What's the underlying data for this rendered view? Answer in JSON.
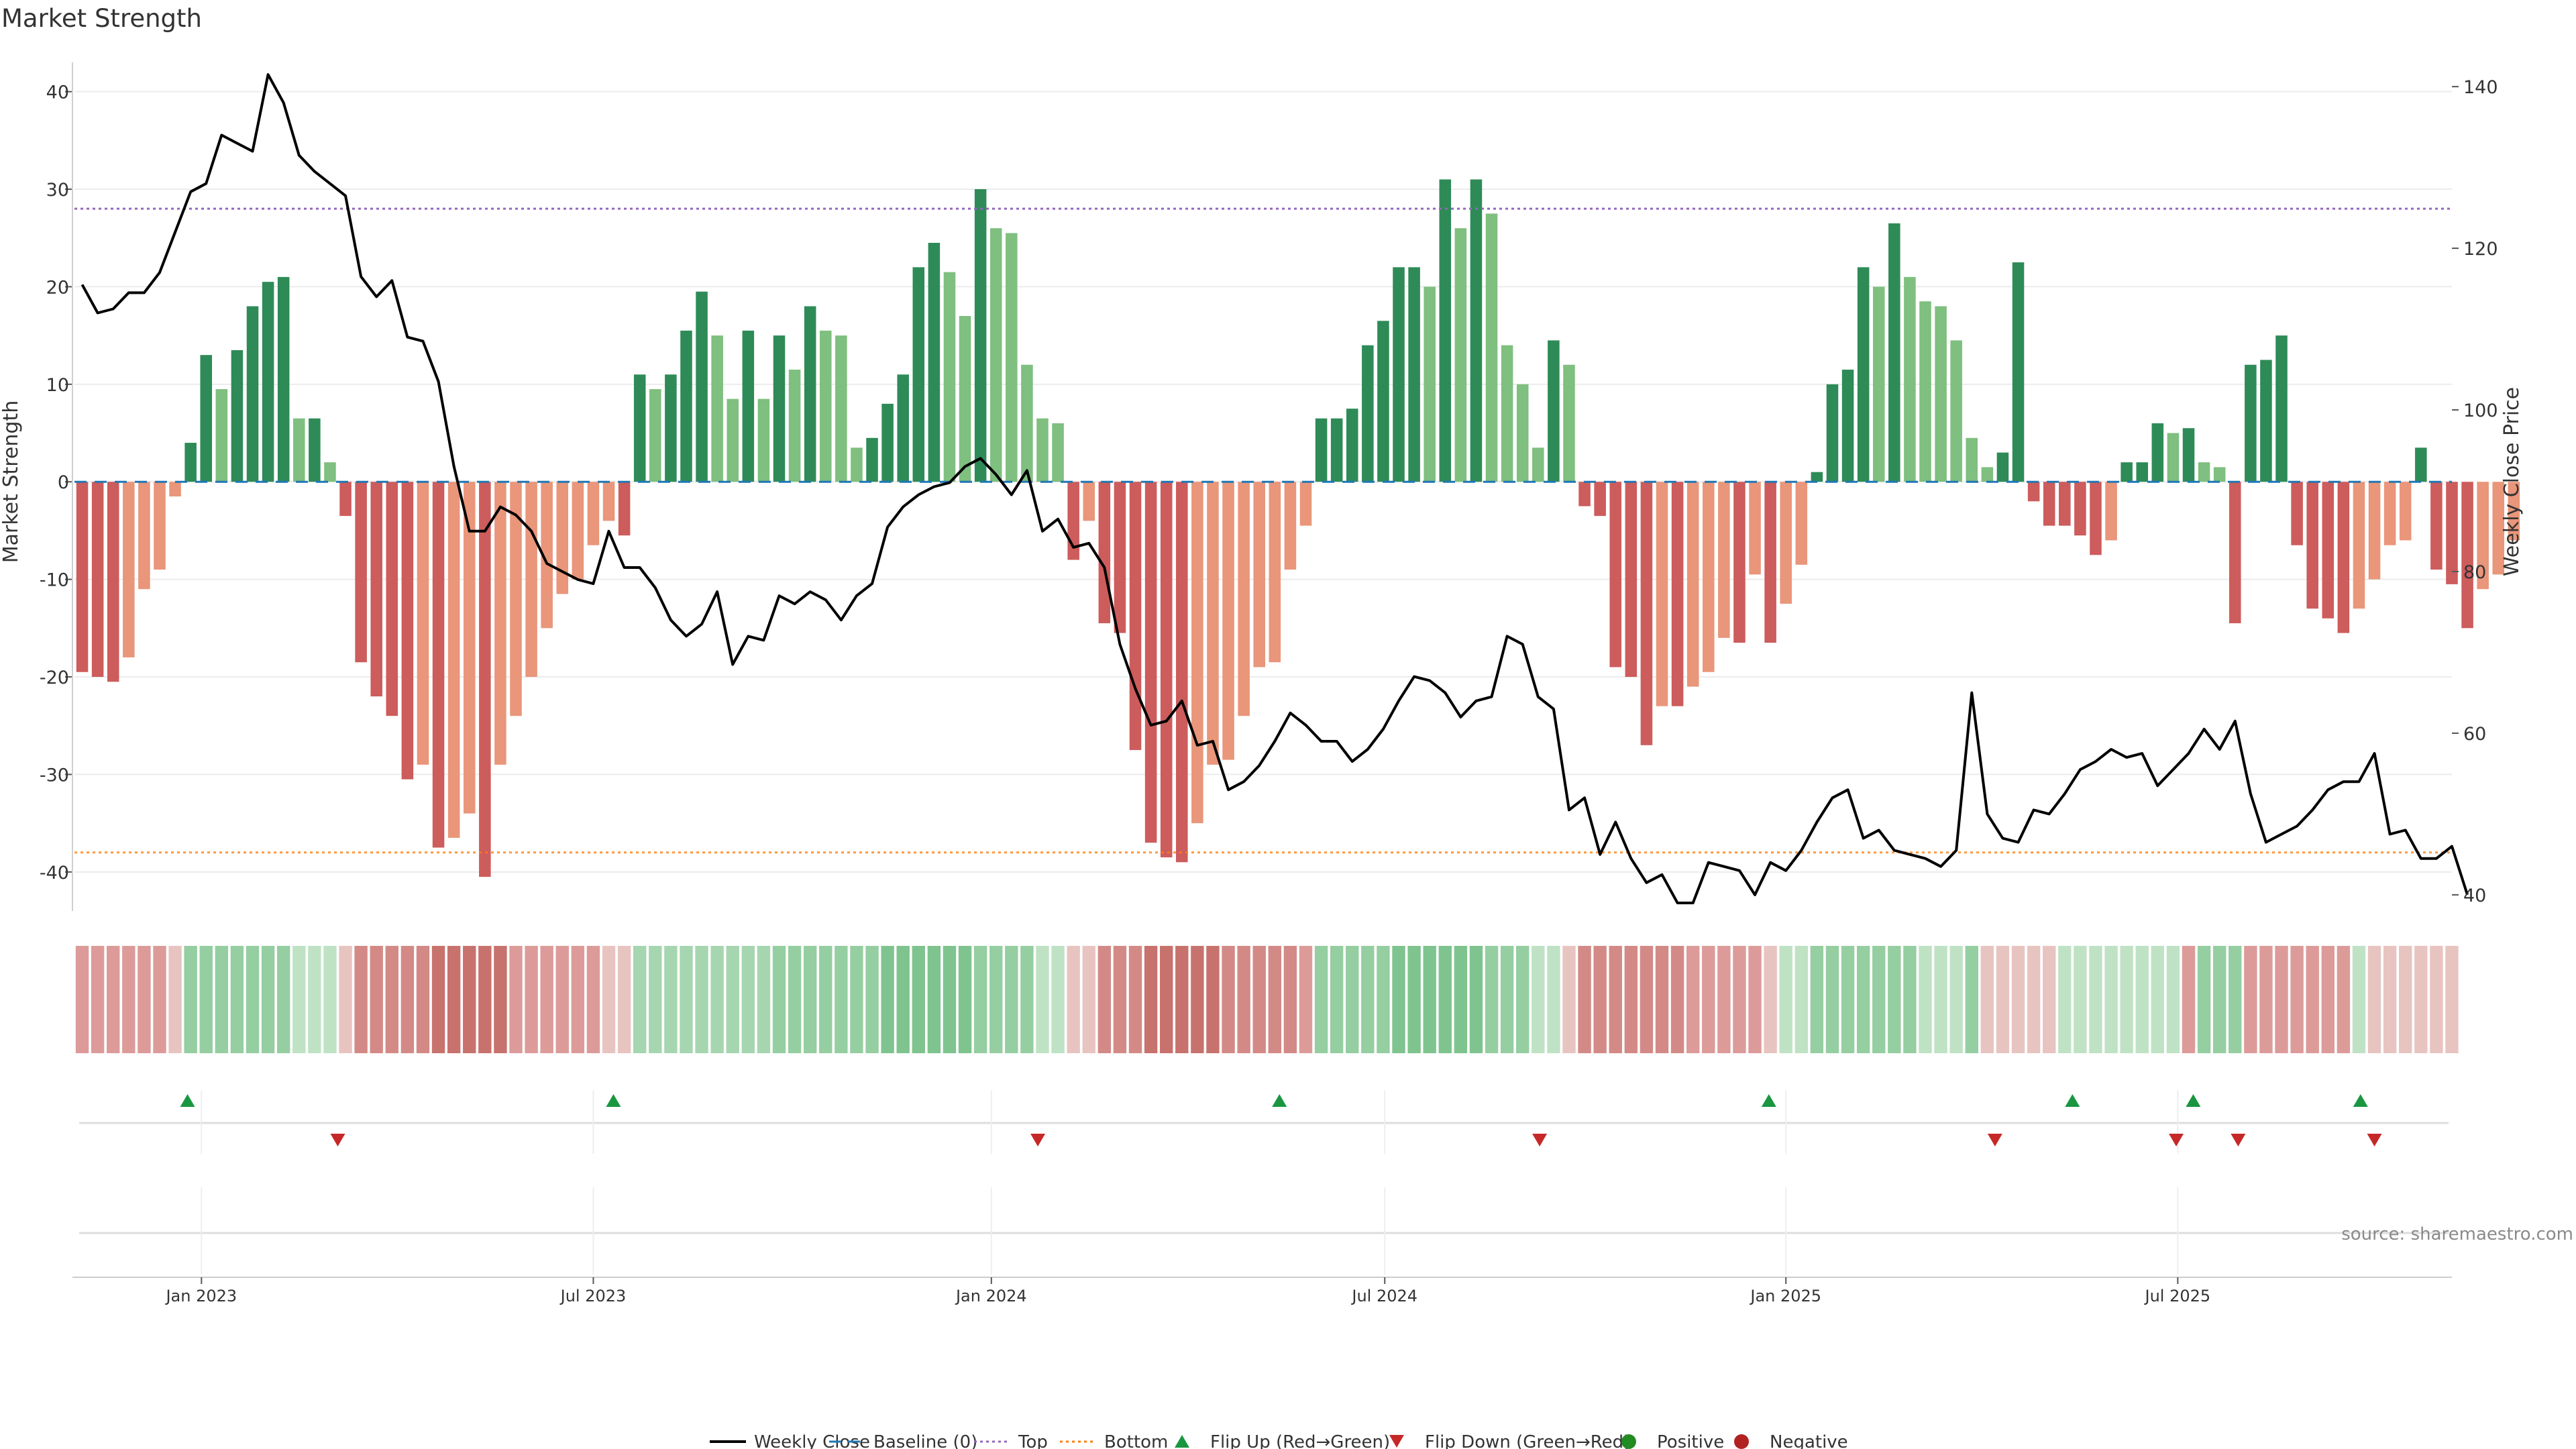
{
  "chart_data": {
    "type": "bar+line",
    "title": "Market Strength",
    "ylabel_left": "Market Strength",
    "ylabel_right": "Weekly Close Price",
    "ylim_left": [
      -44,
      43
    ],
    "ylim_right": [
      38,
      143
    ],
    "left_ticks": [
      40,
      30,
      20,
      10,
      0,
      -10,
      -20,
      -30,
      -40
    ],
    "right_ticks": [
      140,
      120,
      100,
      80,
      60,
      40
    ],
    "top_level": 28,
    "bottom_level": -38,
    "x_range_weeks": [
      0,
      153.5
    ],
    "date_ticks": [
      {
        "label": "Jan 2023",
        "week": 8.2
      },
      {
        "label": "Jul 2023",
        "week": 33.5
      },
      {
        "label": "Jan 2024",
        "week": 59.2
      },
      {
        "label": "Jul 2024",
        "week": 84.6
      },
      {
        "label": "Jan 2025",
        "week": 110.5
      },
      {
        "label": "Jul 2025",
        "week": 135.8
      }
    ],
    "strength": [
      -19.5,
      -20,
      -20.5,
      -18,
      -11,
      -9,
      -1.5,
      4,
      13,
      9.5,
      13.5,
      18,
      20.5,
      21,
      6.5,
      6.5,
      2,
      -3.5,
      -18.5,
      -22,
      -24,
      -30.5,
      -29,
      -37.5,
      -36.5,
      -34,
      -40.5,
      -29,
      -24,
      -20,
      -15,
      -11.5,
      -10,
      -6.5,
      -4,
      -5.5,
      11,
      9.5,
      11,
      15.5,
      19.5,
      15,
      8.5,
      15.5,
      8.5,
      15,
      11.5,
      18,
      15.5,
      15,
      3.5,
      4.5,
      8,
      11,
      22,
      24.5,
      21.5,
      17,
      30,
      26,
      25.5,
      12,
      6.5,
      6,
      -8,
      -4,
      -14.5,
      -15.5,
      -27.5,
      -37,
      -38.5,
      -39,
      -35,
      -29,
      -28.5,
      -24,
      -19,
      -18.5,
      -9,
      -4.5,
      6.5,
      6.5,
      7.5,
      14,
      16.5,
      22,
      22,
      20,
      31,
      26,
      31,
      27.5,
      14,
      10,
      3.5,
      14.5,
      12,
      -2.5,
      -3.5,
      -19,
      -20,
      -27,
      -23,
      -23,
      -21,
      -19.5,
      -16,
      -16.5,
      -9.5,
      -16.5,
      -12.5,
      -8.5,
      1,
      10,
      11.5,
      22,
      20,
      26.5,
      21,
      18.5,
      18,
      14.5,
      4.5,
      1.5,
      3,
      22.5,
      -2,
      -4.5,
      -4.5,
      -5.5,
      -7.5,
      -6,
      2,
      2,
      6,
      5,
      5.5,
      2,
      1.5,
      -14.5,
      12,
      12.5,
      15,
      -6.5,
      -13,
      -14,
      -15.5,
      -13,
      -10,
      -6.5,
      -6,
      3.5,
      -9,
      -10.5,
      -15,
      -11,
      -9.5,
      -6
    ],
    "close": [
      115.5,
      112,
      112.5,
      114.5,
      114.5,
      117,
      122,
      127,
      128,
      134,
      133,
      132,
      141.5,
      138,
      131.5,
      129.5,
      128,
      126.5,
      116.5,
      114,
      116,
      109,
      108.5,
      103.5,
      93,
      85,
      85,
      88,
      87,
      85,
      81,
      80,
      79,
      78.5,
      85,
      80.5,
      80.5,
      78,
      74,
      72,
      73.5,
      77.5,
      68.5,
      72,
      71.5,
      77,
      76,
      77.5,
      76.5,
      74,
      77,
      78.5,
      85.5,
      88,
      89.5,
      90.5,
      91,
      93,
      94,
      92,
      89.5,
      92.5,
      85,
      86.5,
      83,
      83.5,
      80.5,
      71,
      65.5,
      61,
      61.5,
      64,
      58.5,
      59,
      53,
      54,
      56,
      59,
      62.5,
      61,
      59,
      59,
      56.5,
      58,
      60.5,
      64,
      67,
      66.5,
      65,
      62,
      64,
      64.5,
      72,
      71,
      64.5,
      63,
      50.5,
      52,
      45,
      49,
      44.5,
      41.5,
      42.5,
      39,
      39,
      44,
      43.5,
      43,
      40,
      44,
      43,
      45.5,
      49,
      52,
      53,
      47,
      48,
      45.5,
      45,
      44.5,
      43.5,
      45.5,
      65,
      50,
      47,
      46.5,
      50.5,
      50,
      52.5,
      55.5,
      56.5,
      58,
      57,
      57.5,
      53.5,
      55.5,
      57.5,
      60.5,
      58,
      61.5,
      52.5,
      46.5,
      47.5,
      48.5,
      50.5,
      53,
      54,
      54,
      57.5,
      47.5,
      48,
      44.5,
      44.5,
      46,
      40
    ],
    "heat_blocks": [
      {
        "start": 0,
        "end": 6,
        "color": "#dc9b99"
      },
      {
        "start": 6,
        "end": 7,
        "color": "#e8c4c1"
      },
      {
        "start": 7,
        "end": 14,
        "color": "#95cea1"
      },
      {
        "start": 14,
        "end": 17,
        "color": "#bfe2c5"
      },
      {
        "start": 17,
        "end": 18,
        "color": "#e8c4c1"
      },
      {
        "start": 18,
        "end": 23,
        "color": "#d38a86"
      },
      {
        "start": 23,
        "end": 28,
        "color": "#c8726e"
      },
      {
        "start": 28,
        "end": 34,
        "color": "#dc9b99"
      },
      {
        "start": 34,
        "end": 36,
        "color": "#e8c4c1"
      },
      {
        "start": 36,
        "end": 45,
        "color": "#a6d6b0"
      },
      {
        "start": 45,
        "end": 52,
        "color": "#95cea1"
      },
      {
        "start": 52,
        "end": 58,
        "color": "#7fc48e"
      },
      {
        "start": 58,
        "end": 62,
        "color": "#95cea1"
      },
      {
        "start": 62,
        "end": 64,
        "color": "#bfe2c5"
      },
      {
        "start": 64,
        "end": 66,
        "color": "#e8c4c1"
      },
      {
        "start": 66,
        "end": 69,
        "color": "#d38a86"
      },
      {
        "start": 69,
        "end": 74,
        "color": "#c8726e"
      },
      {
        "start": 74,
        "end": 79,
        "color": "#d38a86"
      },
      {
        "start": 79,
        "end": 80,
        "color": "#dc9b99"
      },
      {
        "start": 80,
        "end": 85,
        "color": "#95cea1"
      },
      {
        "start": 85,
        "end": 91,
        "color": "#7fc48e"
      },
      {
        "start": 91,
        "end": 94,
        "color": "#95cea1"
      },
      {
        "start": 94,
        "end": 96,
        "color": "#bfe2c5"
      },
      {
        "start": 96,
        "end": 97,
        "color": "#e8c4c1"
      },
      {
        "start": 97,
        "end": 104,
        "color": "#d38a86"
      },
      {
        "start": 104,
        "end": 109,
        "color": "#dc9b99"
      },
      {
        "start": 109,
        "end": 110,
        "color": "#e8c4c1"
      },
      {
        "start": 110,
        "end": 112,
        "color": "#bfe2c5"
      },
      {
        "start": 112,
        "end": 119,
        "color": "#95cea1"
      },
      {
        "start": 119,
        "end": 122,
        "color": "#bfe2c5"
      },
      {
        "start": 122,
        "end": 123,
        "color": "#95cea1"
      },
      {
        "start": 123,
        "end": 128,
        "color": "#e8c4c1"
      },
      {
        "start": 128,
        "end": 136,
        "color": "#bfe2c5"
      },
      {
        "start": 136,
        "end": 137,
        "color": "#dc9b99"
      },
      {
        "start": 137,
        "end": 140,
        "color": "#95cea1"
      },
      {
        "start": 140,
        "end": 147,
        "color": "#dc9b99"
      },
      {
        "start": 147,
        "end": 148,
        "color": "#bfe2c5"
      },
      {
        "start": 148,
        "end": 154,
        "color": "#e8c4c1"
      }
    ],
    "flips_up_weeks": [
      7.3,
      34.8,
      77.8,
      109.4,
      129,
      136.8,
      147.6
    ],
    "flips_down_weeks": [
      17,
      62.2,
      94.6,
      124,
      135.7,
      139.7,
      148.5
    ],
    "colors": {
      "strong_green": "#2e8b57",
      "light_green": "#7fbf7f",
      "strong_red": "#cd5c5c",
      "light_red": "#e9967a",
      "close_line": "#000000",
      "baseline": "#1f77b4",
      "top_line": "#9467bd",
      "bottom_line": "#ff7f0e",
      "flip_up": "#1a9641",
      "flip_down": "#c62828",
      "positive": "#228b22",
      "negative": "#b22222"
    },
    "legend": [
      {
        "label": "Weekly Close",
        "kind": "line",
        "color": "#000000"
      },
      {
        "label": "Baseline (0)",
        "kind": "dash",
        "color": "#1f77b4"
      },
      {
        "label": "Top",
        "kind": "dot",
        "color": "#9467bd"
      },
      {
        "label": "Bottom",
        "kind": "dot",
        "color": "#ff7f0e"
      },
      {
        "label": "Flip Up (Red→Green)",
        "kind": "tri-up",
        "color": "#1a9641"
      },
      {
        "label": "Flip Down (Green→Red)",
        "kind": "tri-down",
        "color": "#c62828"
      },
      {
        "label": "Positive",
        "kind": "circle",
        "color": "#228b22"
      },
      {
        "label": "Negative",
        "kind": "circle",
        "color": "#b22222"
      }
    ],
    "source": "source: sharemaestro.com"
  }
}
